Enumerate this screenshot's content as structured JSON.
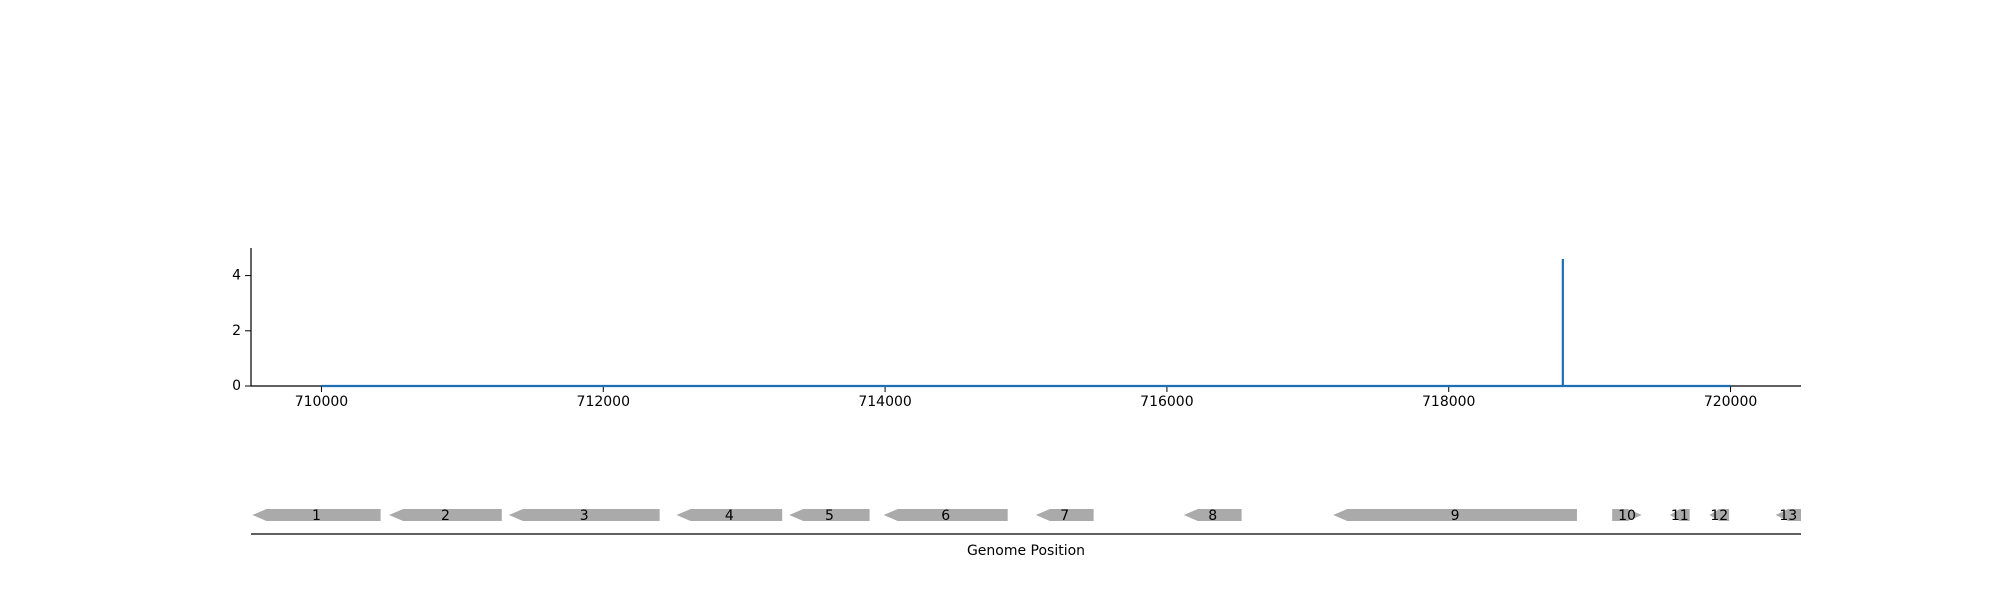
{
  "chart_data": [
    {
      "type": "line",
      "title": "",
      "xlabel": "",
      "ylabel": "",
      "xlim": [
        709500,
        720500
      ],
      "ylim": [
        0,
        5
      ],
      "x_ticks": [
        710000,
        712000,
        714000,
        716000,
        718000,
        720000
      ],
      "x_tick_labels": [
        "710000",
        "712000",
        "714000",
        "716000",
        "718000",
        "720000"
      ],
      "y_ticks": [
        0,
        2,
        4
      ],
      "y_tick_labels": [
        "0",
        "2",
        "4"
      ],
      "grid": false,
      "series": [
        {
          "color": "#1f6fb4",
          "points": [
            {
              "x": 710000,
              "y": 0
            },
            {
              "x": 718810,
              "y": 0
            },
            {
              "x": 718810,
              "y": 4.6
            },
            {
              "x": 718810,
              "y": 0
            },
            {
              "x": 720000,
              "y": 0
            }
          ]
        }
      ]
    },
    {
      "type": "gene-track",
      "xlabel": "Genome Position",
      "xlim": [
        709500,
        720500
      ],
      "feature_color": "#aaaaaa",
      "genes": [
        {
          "label": "1",
          "start": 709510,
          "end": 710420,
          "strand": "-"
        },
        {
          "label": "2",
          "start": 710480,
          "end": 711280,
          "strand": "-"
        },
        {
          "label": "3",
          "start": 711330,
          "end": 712400,
          "strand": "-"
        },
        {
          "label": "4",
          "start": 712520,
          "end": 713270,
          "strand": "-"
        },
        {
          "label": "5",
          "start": 713320,
          "end": 713890,
          "strand": "-"
        },
        {
          "label": "6",
          "start": 713990,
          "end": 714870,
          "strand": "-"
        },
        {
          "label": "7",
          "start": 715070,
          "end": 715480,
          "strand": "-"
        },
        {
          "label": "8",
          "start": 716120,
          "end": 716530,
          "strand": "-"
        },
        {
          "label": "9",
          "start": 717180,
          "end": 718910,
          "strand": "-"
        },
        {
          "label": "10",
          "start": 719160,
          "end": 719370,
          "strand": "+"
        },
        {
          "label": "11",
          "start": 719570,
          "end": 719710,
          "strand": "-"
        },
        {
          "label": "12",
          "start": 719850,
          "end": 719990,
          "strand": "-"
        },
        {
          "label": "13",
          "start": 720320,
          "end": 720500,
          "strand": "-"
        }
      ]
    }
  ]
}
